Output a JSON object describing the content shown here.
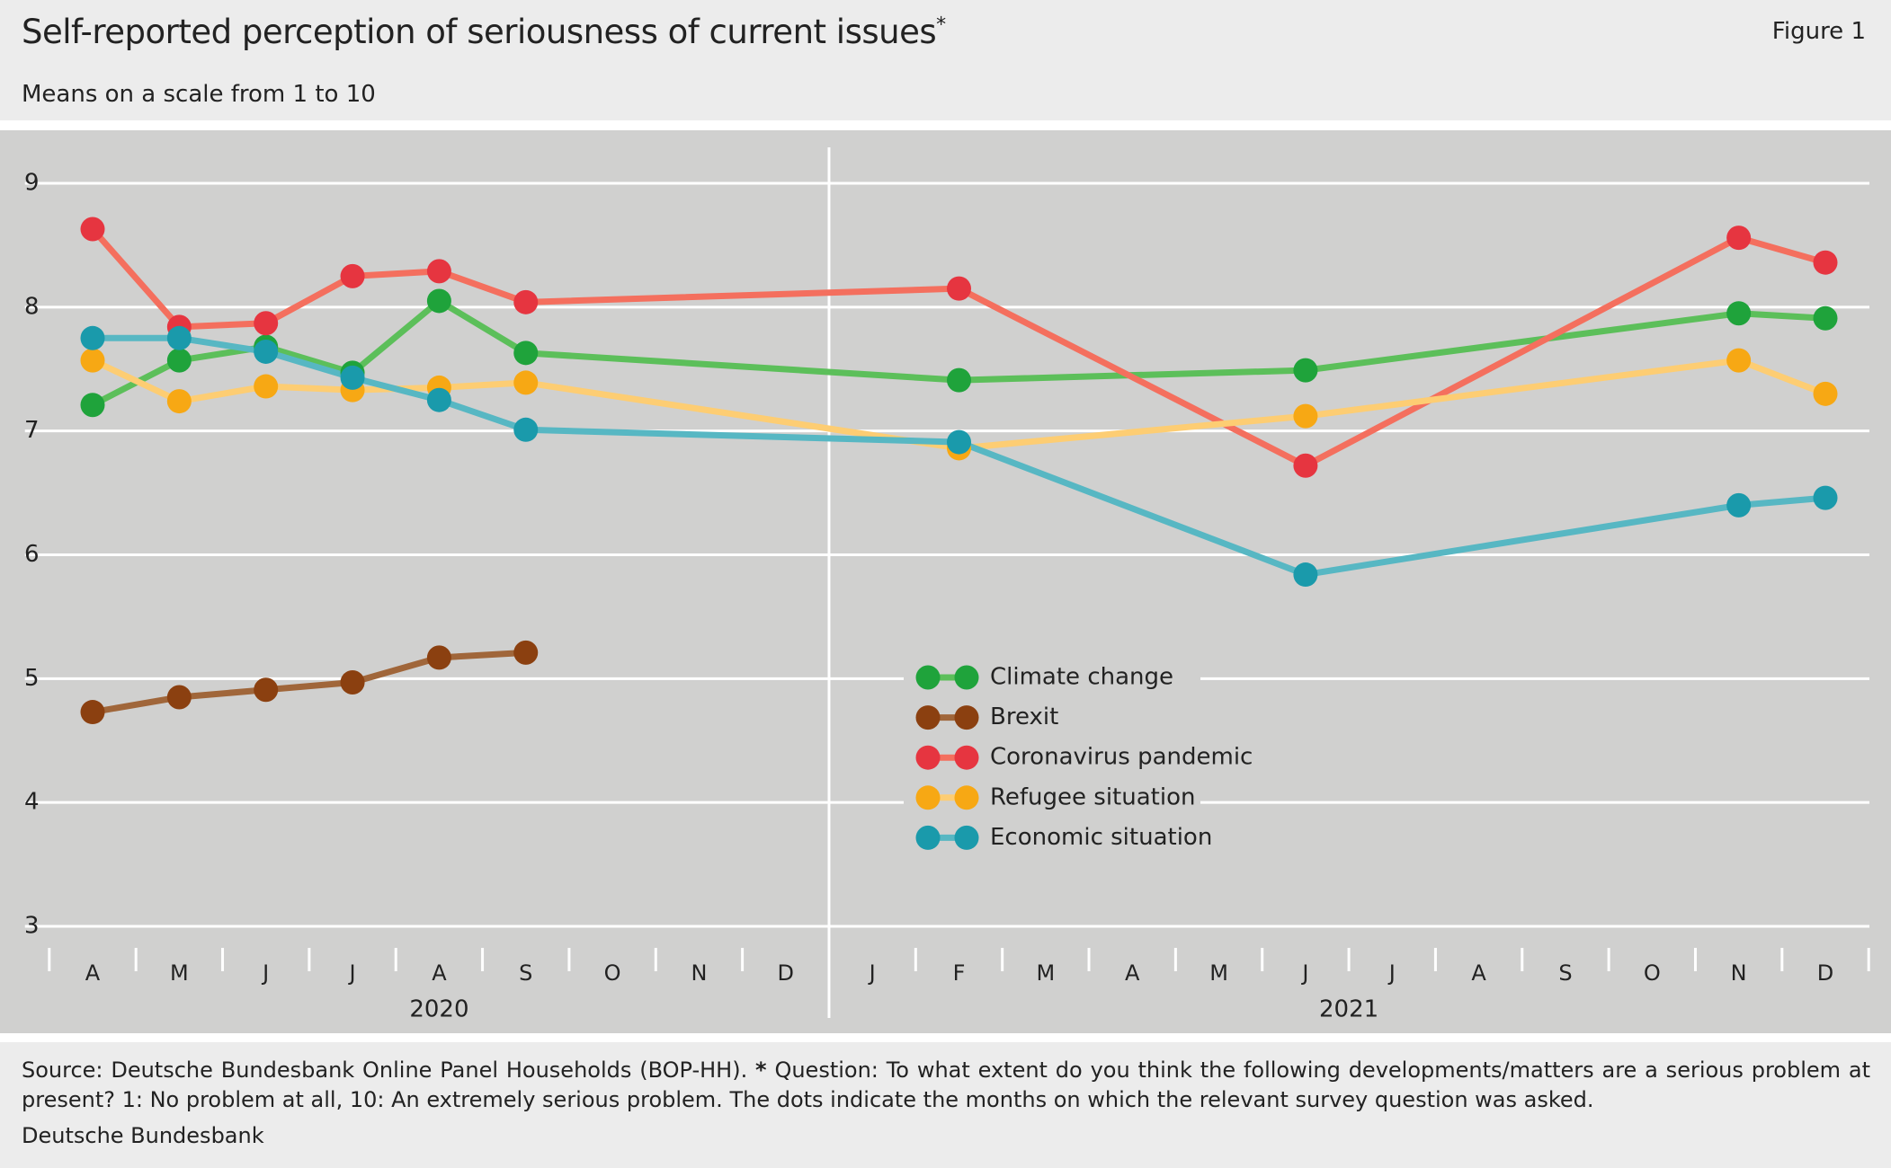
{
  "chart_data": {
    "type": "line",
    "title": "Self-reported perception of seriousness of current issues",
    "title_marker": "*",
    "subtitle": "Means on a scale from 1 to 10",
    "figure_label": "Figure 1",
    "categories": [
      "A",
      "M",
      "J",
      "J",
      "A",
      "S",
      "O",
      "N",
      "D",
      "J",
      "F",
      "M",
      "A",
      "M",
      "J",
      "J",
      "A",
      "S",
      "O",
      "N",
      "D"
    ],
    "years": [
      "2020",
      "2021"
    ],
    "xlim": [
      "2020-04",
      "2021-12"
    ],
    "ylim": [
      3,
      9
    ],
    "yticks": [
      3,
      4,
      5,
      6,
      7,
      8,
      9
    ],
    "grid": true,
    "series": [
      {
        "name": "Climate change",
        "color": "#1fa33b",
        "line_color": "#5cbf5a",
        "x": [
          "2020-04",
          "2020-05",
          "2020-06",
          "2020-07",
          "2020-08",
          "2020-09",
          "2021-02",
          "2021-06",
          "2021-11",
          "2021-12"
        ],
        "values": [
          7.21,
          7.57,
          7.68,
          7.47,
          8.05,
          7.63,
          7.41,
          7.49,
          7.95,
          7.91
        ]
      },
      {
        "name": "Brexit",
        "color": "#8b4010",
        "line_color": "#a0663a",
        "x": [
          "2020-04",
          "2020-05",
          "2020-06",
          "2020-07",
          "2020-08",
          "2020-09"
        ],
        "values": [
          4.73,
          4.85,
          4.91,
          4.97,
          5.17,
          5.21
        ]
      },
      {
        "name": "Coronavirus pandemic",
        "color": "#e63540",
        "line_color": "#f46f5e",
        "x": [
          "2020-04",
          "2020-05",
          "2020-06",
          "2020-07",
          "2020-08",
          "2020-09",
          "2021-02",
          "2021-06",
          "2021-11",
          "2021-12"
        ],
        "values": [
          8.63,
          7.84,
          7.87,
          8.25,
          8.29,
          8.04,
          8.15,
          6.72,
          8.56,
          8.36
        ]
      },
      {
        "name": "Refugee situation",
        "color": "#f7a814",
        "line_color": "#fdcd73",
        "x": [
          "2020-04",
          "2020-05",
          "2020-06",
          "2020-07",
          "2020-08",
          "2020-09",
          "2021-02",
          "2021-06",
          "2021-11",
          "2021-12"
        ],
        "values": [
          7.57,
          7.24,
          7.36,
          7.33,
          7.35,
          7.39,
          6.86,
          7.12,
          7.57,
          7.3
        ]
      },
      {
        "name": "Economic situation",
        "color": "#1a9aab",
        "line_color": "#57b7c3",
        "x": [
          "2020-04",
          "2020-05",
          "2020-06",
          "2020-07",
          "2020-08",
          "2020-09",
          "2021-02",
          "2021-06",
          "2021-11",
          "2021-12"
        ],
        "values": [
          7.75,
          7.75,
          7.64,
          7.43,
          7.25,
          7.01,
          6.91,
          5.84,
          6.4,
          6.46
        ]
      }
    ],
    "notes": {
      "source": "Source: Deutsche Bundesbank Online Panel Households (BOP-HH).",
      "asterisk": "*",
      "question": "Question: To what extent do you think the following developments/matters are a serious problem at present? 1: No problem at all, 10: An extremely serious problem. The dots indicate the months on which the relevant survey question was asked."
    },
    "publisher": "Deutsche Bundesbank"
  }
}
